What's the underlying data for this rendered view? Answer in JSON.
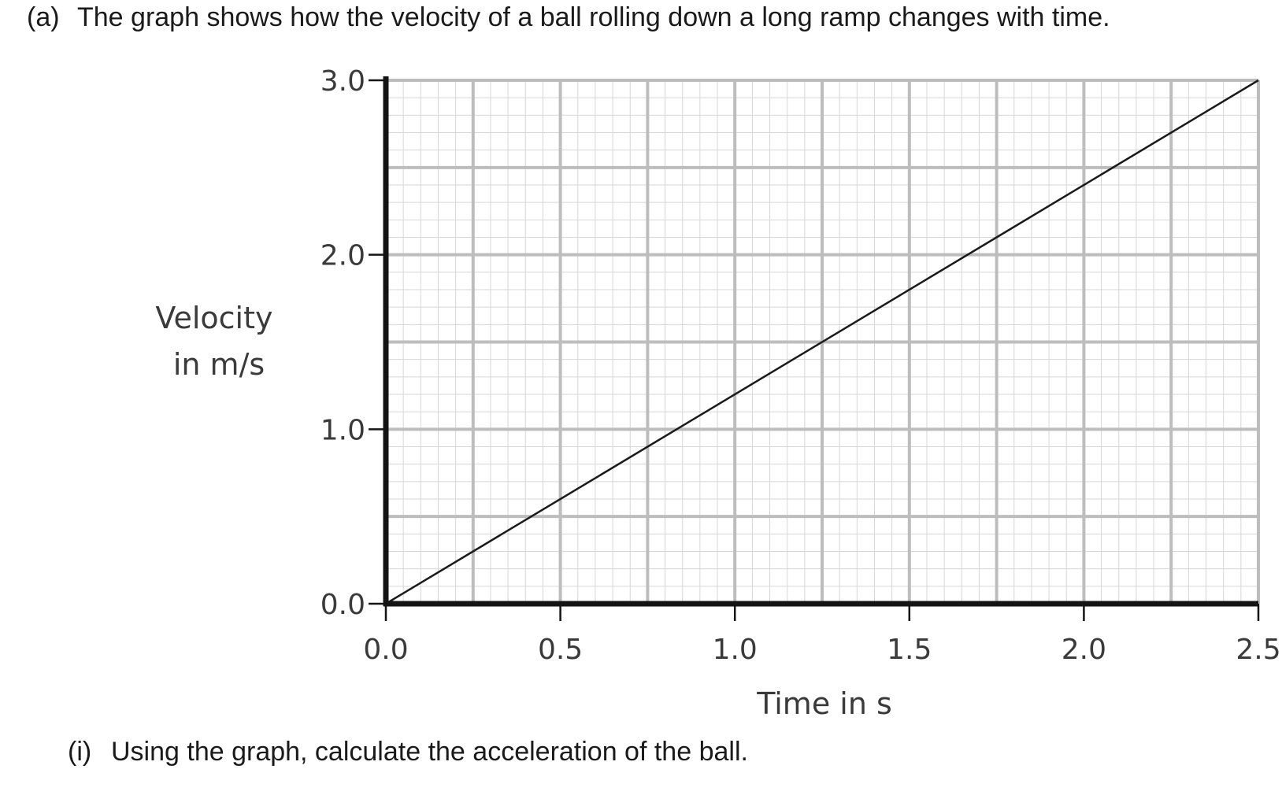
{
  "question": {
    "label": "(a)",
    "text": "The graph shows how the velocity of a ball rolling down a long ramp changes with time."
  },
  "sub_question": {
    "label": "(i)",
    "text": "Using the graph, calculate the acceleration of the ball."
  },
  "chart_data": {
    "type": "line",
    "title": "",
    "xlabel": "Time in s",
    "ylabel_lines": [
      "Velocity",
      "in m/s"
    ],
    "xlim": [
      0,
      2.5
    ],
    "ylim": [
      0,
      3.0
    ],
    "x_ticks": [
      "0.0",
      "0.5",
      "1.0",
      "1.5",
      "2.0",
      "2.5"
    ],
    "y_ticks": [
      "0.0",
      "1.0",
      "2.0",
      "3.0"
    ],
    "grid": "on",
    "series": [
      {
        "x": [
          0.0,
          2.5
        ],
        "y": [
          0.0,
          3.0
        ]
      }
    ],
    "colors": {
      "line": "#1a1a1a",
      "axis": "#141414",
      "grid_major": "#bdbdbd",
      "grid_minor": "#d6d6d6"
    }
  }
}
